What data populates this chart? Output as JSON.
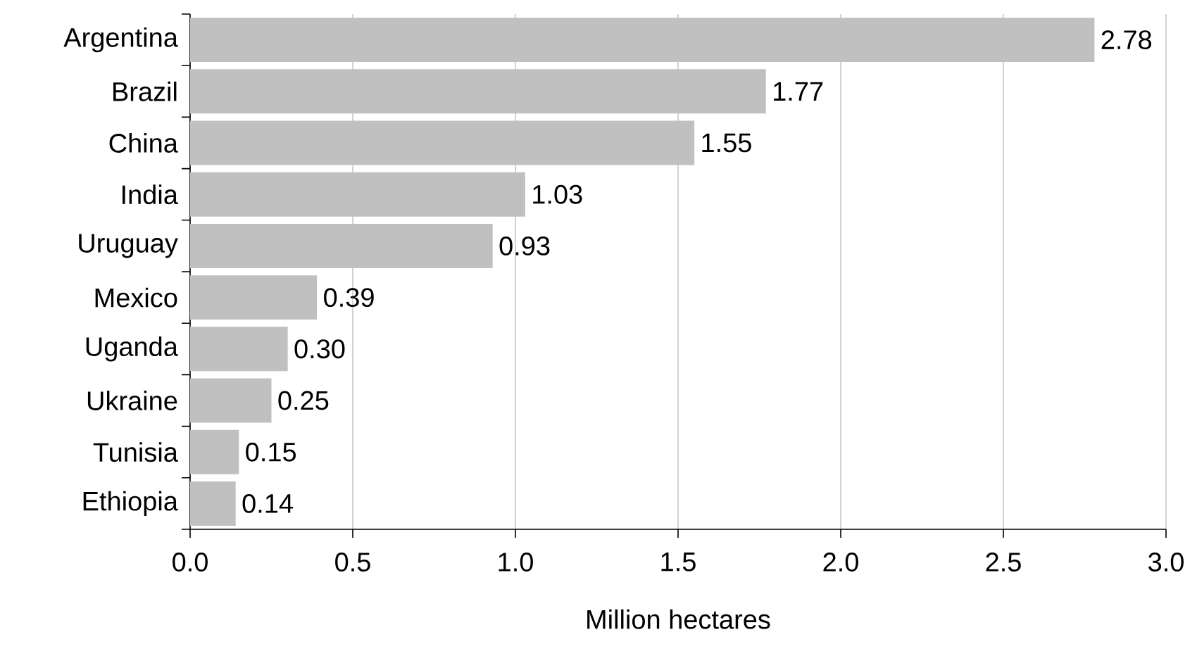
{
  "chart_data": {
    "type": "bar",
    "orientation": "horizontal",
    "xlabel": "Million hectares",
    "categories": [
      "Argentina",
      "Brazil",
      "China",
      "India",
      "Uruguay",
      "Mexico",
      "Uganda",
      "Ukraine",
      "Tunisia",
      "Ethiopia"
    ],
    "values": [
      2.78,
      1.77,
      1.55,
      1.03,
      0.93,
      0.39,
      0.3,
      0.25,
      0.15,
      0.14
    ],
    "value_labels": [
      "2.78",
      "1.77",
      "1.55",
      "1.03",
      "0.93",
      "0.39",
      "0.30",
      "0.25",
      "0.15",
      "0.14"
    ],
    "color": "#c0c0c0",
    "xlim": [
      0,
      3
    ],
    "xticks": [
      {
        "value": 0,
        "label": "0.0"
      },
      {
        "value": 0.5,
        "label": "0.5"
      },
      {
        "value": 1,
        "label": "1.0"
      },
      {
        "value": 1.5,
        "label": "1.5"
      },
      {
        "value": 2,
        "label": "2.0"
      },
      {
        "value": 2.5,
        "label": "2.5"
      },
      {
        "value": 3,
        "label": "3.0"
      }
    ],
    "grid": "x"
  }
}
